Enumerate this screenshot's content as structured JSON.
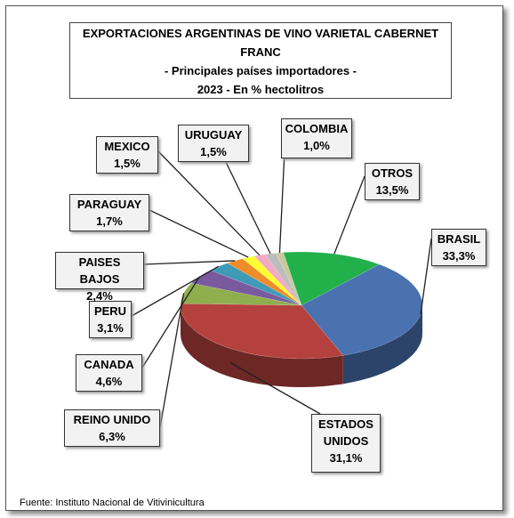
{
  "chart_data": {
    "type": "pie",
    "title": "EXPORTACIONES ARGENTINAS DE VINO VARIETAL CABERNET FRANC",
    "subtitle": "- Principales países importadores -",
    "subtitle2": "2023 - En % hectolitros",
    "source": "Fuente: Instituto Nacional de Vitivinicultura",
    "categories": [
      "BRASIL",
      "ESTADOS UNIDOS",
      "REINO UNIDO",
      "CANADA",
      "PERU",
      "PAISES BAJOS",
      "PARAGUAY",
      "MEXICO",
      "URUGUAY",
      "COLOMBIA",
      "OTROS"
    ],
    "values": [
      33.3,
      31.1,
      6.3,
      4.6,
      3.1,
      2.4,
      1.7,
      1.5,
      1.5,
      1.0,
      13.5
    ],
    "value_labels": [
      "33,3%",
      "31,1%",
      "6,3%",
      "4,6%",
      "3,1%",
      "2,4%",
      "1,7%",
      "1,5%",
      "1,5%",
      "1,0%",
      "13,5%"
    ],
    "colors": [
      "#4a72b0",
      "#b5413e",
      "#8fae4e",
      "#7a5a9e",
      "#3f9ab8",
      "#f08c2a",
      "#ffff33",
      "#f2a9c4",
      "#bdbdbd",
      "#c9c99e",
      "#22b04b"
    ]
  }
}
